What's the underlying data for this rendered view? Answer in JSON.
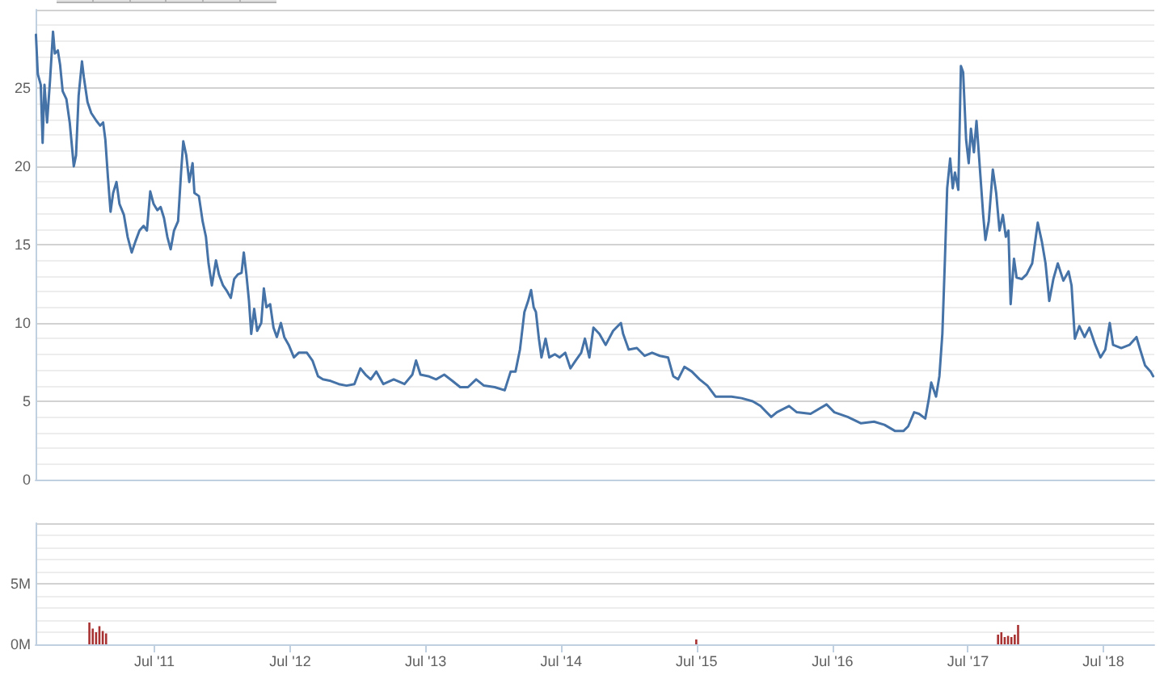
{
  "chart_data": [
    {
      "type": "line",
      "color": "#4572a7",
      "xlim": [
        "2010-08-15",
        "2018-11-15"
      ],
      "ylim": [
        0,
        30
      ],
      "yticks": [
        0,
        5,
        10,
        15,
        20,
        25,
        {
          "value": 30,
          "label": null
        }
      ],
      "grid": "y",
      "tick_labels": "y",
      "x": [
        "2010-08-16",
        "2010-08-21",
        "2010-08-29",
        "2010-09-03",
        "2010-09-08",
        "2010-09-15",
        "2010-09-23",
        "2010-10-01",
        "2010-10-06",
        "2010-10-14",
        "2010-10-20",
        "2010-10-27",
        "2010-11-06",
        "2010-11-15",
        "2010-11-26",
        "2010-12-02",
        "2010-12-09",
        "2010-12-18",
        "2010-12-23",
        "2011-01-02",
        "2011-01-12",
        "2011-01-26",
        "2011-02-05",
        "2011-02-13",
        "2011-02-19",
        "2011-02-26",
        "2011-03-05",
        "2011-03-12",
        "2011-03-21",
        "2011-03-29",
        "2011-04-10",
        "2011-04-20",
        "2011-05-01",
        "2011-05-11",
        "2011-05-22",
        "2011-06-02",
        "2011-06-11",
        "2011-06-20",
        "2011-06-29",
        "2011-07-09",
        "2011-07-18",
        "2011-07-27",
        "2011-08-05",
        "2011-08-14",
        "2011-08-23",
        "2011-09-03",
        "2011-09-11",
        "2011-09-17",
        "2011-09-25",
        "2011-10-03",
        "2011-10-12",
        "2011-10-17",
        "2011-10-29",
        "2011-11-08",
        "2011-11-17",
        "2011-11-24",
        "2011-12-03",
        "2011-12-14",
        "2011-12-22",
        "2012-01-02",
        "2012-01-11",
        "2012-01-23",
        "2012-02-01",
        "2012-02-11",
        "2012-02-21",
        "2012-02-27",
        "2012-03-05",
        "2012-03-12",
        "2012-03-18",
        "2012-03-26",
        "2012-04-03",
        "2012-04-14",
        "2012-04-21",
        "2012-04-28",
        "2012-05-08",
        "2012-05-17",
        "2012-05-26",
        "2012-06-06",
        "2012-06-15",
        "2012-06-27",
        "2012-07-11",
        "2012-07-24",
        "2012-08-15",
        "2012-08-30",
        "2012-09-14",
        "2012-09-27",
        "2012-10-18",
        "2012-11-09",
        "2012-11-30",
        "2012-12-21",
        "2013-01-06",
        "2013-01-20",
        "2013-02-03",
        "2013-02-18",
        "2013-03-09",
        "2013-04-06",
        "2013-05-05",
        "2013-05-26",
        "2013-06-05",
        "2013-06-17",
        "2013-07-08",
        "2013-07-29",
        "2013-08-20",
        "2013-09-11",
        "2013-10-02",
        "2013-10-23",
        "2013-11-14",
        "2013-12-05",
        "2014-01-03",
        "2014-01-30",
        "2014-02-15",
        "2014-02-28",
        "2014-03-12",
        "2014-03-24",
        "2014-04-03",
        "2014-04-11",
        "2014-04-18",
        "2014-04-24",
        "2014-05-02",
        "2014-05-09",
        "2014-05-20",
        "2014-05-30",
        "2014-06-14",
        "2014-06-27",
        "2014-07-12",
        "2014-07-26",
        "2014-08-09",
        "2014-08-24",
        "2014-09-03",
        "2014-09-15",
        "2014-09-26",
        "2014-10-12",
        "2014-10-29",
        "2014-11-18",
        "2014-12-09",
        "2014-12-15",
        "2014-12-30",
        "2015-01-21",
        "2015-02-11",
        "2015-03-03",
        "2015-03-24",
        "2015-04-15",
        "2015-04-29",
        "2015-05-12",
        "2015-05-29",
        "2015-06-18",
        "2015-07-09",
        "2015-07-30",
        "2015-08-21",
        "2015-10-03",
        "2015-10-30",
        "2015-11-29",
        "2015-12-20",
        "2016-01-18",
        "2016-02-02",
        "2016-03-06",
        "2016-03-27",
        "2016-05-03",
        "2016-06-15",
        "2016-07-06",
        "2016-08-11",
        "2016-09-15",
        "2016-10-21",
        "2016-11-18",
        "2016-12-17",
        "2017-01-08",
        "2017-01-21",
        "2017-02-06",
        "2017-02-19",
        "2017-03-08",
        "2017-03-18",
        "2017-03-24",
        "2017-04-06",
        "2017-04-15",
        "2017-04-23",
        "2017-04-30",
        "2017-05-06",
        "2017-05-14",
        "2017-05-21",
        "2017-05-27",
        "2017-06-05",
        "2017-06-12",
        "2017-06-18",
        "2017-06-26",
        "2017-07-03",
        "2017-07-09",
        "2017-07-17",
        "2017-07-24",
        "2017-07-30",
        "2017-08-11",
        "2017-08-17",
        "2017-08-26",
        "2017-09-06",
        "2017-09-15",
        "2017-09-24",
        "2017-10-03",
        "2017-10-11",
        "2017-10-18",
        "2017-10-24",
        "2017-11-02",
        "2017-11-09",
        "2017-11-23",
        "2017-12-06",
        "2017-12-21",
        "2018-01-05",
        "2018-01-16",
        "2018-01-26",
        "2018-02-05",
        "2018-02-16",
        "2018-02-28",
        "2018-03-15",
        "2018-03-29",
        "2018-04-06",
        "2018-04-15",
        "2018-04-27",
        "2018-05-11",
        "2018-05-24",
        "2018-06-09",
        "2018-06-23",
        "2018-07-06",
        "2018-07-18",
        "2018-07-27",
        "2018-08-18",
        "2018-09-09",
        "2018-09-28",
        "2018-10-08",
        "2018-10-21",
        "2018-11-05",
        "2018-11-12"
      ],
      "values": [
        28.4,
        25.9,
        25.2,
        21.5,
        25.2,
        22.8,
        25.5,
        28.6,
        27.2,
        27.4,
        26.5,
        24.8,
        24.3,
        22.8,
        20.0,
        20.7,
        24.5,
        26.7,
        25.7,
        24.1,
        23.4,
        22.9,
        22.6,
        22.8,
        21.7,
        19.3,
        17.1,
        18.3,
        19.0,
        17.6,
        16.9,
        15.5,
        14.5,
        15.2,
        15.9,
        16.2,
        15.9,
        18.4,
        17.6,
        17.2,
        17.4,
        16.7,
        15.5,
        14.7,
        15.9,
        16.5,
        19.6,
        21.6,
        20.7,
        19.0,
        20.2,
        18.3,
        18.1,
        16.5,
        15.5,
        13.8,
        12.4,
        14.0,
        13.1,
        12.4,
        12.1,
        11.6,
        12.8,
        13.1,
        13.2,
        14.5,
        13.1,
        11.4,
        9.3,
        10.9,
        9.5,
        10.0,
        12.2,
        11.0,
        11.2,
        9.7,
        9.1,
        10.0,
        9.1,
        8.6,
        7.8,
        8.1,
        8.1,
        7.6,
        6.6,
        6.4,
        6.3,
        6.1,
        6.0,
        6.1,
        7.1,
        6.7,
        6.4,
        6.9,
        6.1,
        6.4,
        6.1,
        6.7,
        7.6,
        6.7,
        6.6,
        6.4,
        6.7,
        6.3,
        5.9,
        5.9,
        6.4,
        6.0,
        5.9,
        5.7,
        6.9,
        6.9,
        8.3,
        10.7,
        11.4,
        12.1,
        11.0,
        10.7,
        9.0,
        7.8,
        9.0,
        7.8,
        8.0,
        7.8,
        8.1,
        7.1,
        7.6,
        8.1,
        9.0,
        7.8,
        9.7,
        9.3,
        8.6,
        9.5,
        10.0,
        9.3,
        8.3,
        8.4,
        7.9,
        8.1,
        7.9,
        7.8,
        6.6,
        6.4,
        7.2,
        6.9,
        6.4,
        6.0,
        5.3,
        5.3,
        5.2,
        5.0,
        4.7,
        4.0,
        4.3,
        4.7,
        4.3,
        4.2,
        4.8,
        4.3,
        4.0,
        3.6,
        3.7,
        3.5,
        3.1,
        3.1,
        3.4,
        4.3,
        4.2,
        3.9,
        5.2,
        6.2,
        5.3,
        6.6,
        9.3,
        14.1,
        18.6,
        20.5,
        18.6,
        19.6,
        18.5,
        26.4,
        26.0,
        21.7,
        20.2,
        22.4,
        20.9,
        22.9,
        20.9,
        16.9,
        15.3,
        16.5,
        19.8,
        18.3,
        15.9,
        16.9,
        15.5,
        15.9,
        11.2,
        14.1,
        12.9,
        12.8,
        13.1,
        13.8,
        16.4,
        15.2,
        13.8,
        11.4,
        12.8,
        13.8,
        12.7,
        13.3,
        12.4,
        9.0,
        9.8,
        9.1,
        9.7,
        8.6,
        7.8,
        8.3,
        10.0,
        8.6,
        8.4,
        8.6,
        9.1,
        8.3,
        7.3,
        6.9,
        6.6
      ]
    },
    {
      "type": "bar",
      "color": "#a83232",
      "xlim": [
        "2010-08-15",
        "2018-11-15"
      ],
      "ylim": [
        0,
        10
      ],
      "yticks": [
        {
          "value": 0,
          "label": "0M"
        },
        {
          "value": 5,
          "label": "5M"
        },
        {
          "value": 10,
          "label": null
        }
      ],
      "grid": "y",
      "xticks": [
        {
          "value": "2011-07",
          "label": "Jul '11"
        },
        {
          "value": "2012-07",
          "label": "Jul '12"
        },
        {
          "value": "2013-07",
          "label": "Jul '13"
        },
        {
          "value": "2014-07",
          "label": "Jul '14"
        },
        {
          "value": "2015-07",
          "label": "Jul '15"
        },
        {
          "value": "2016-07",
          "label": "Jul '16"
        },
        {
          "value": "2017-07",
          "label": "Jul '17"
        },
        {
          "value": "2018-07",
          "label": "Jul '18"
        }
      ],
      "x": [
        "2011-01-07",
        "2011-01-16",
        "2011-01-25",
        "2011-02-03",
        "2011-02-12",
        "2011-02-21",
        "2015-06-30",
        "2017-09-20",
        "2017-09-29",
        "2017-10-08",
        "2017-10-17",
        "2017-10-26",
        "2017-11-04",
        "2017-11-13"
      ],
      "values": [
        1.8,
        1.3,
        1.0,
        1.5,
        1.1,
        0.9,
        0.4,
        0.8,
        1.0,
        0.6,
        0.7,
        0.6,
        0.8,
        1.6
      ]
    }
  ]
}
